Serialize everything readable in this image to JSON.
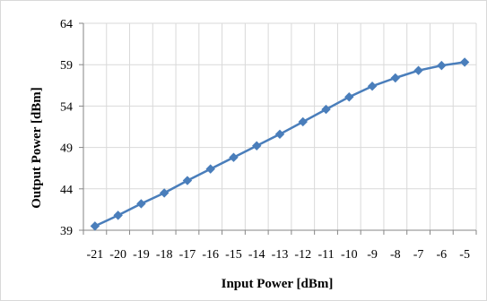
{
  "chart_data": {
    "type": "line",
    "title": "",
    "xlabel": "Input Power [dBm]",
    "ylabel": "Output Power [dBm]",
    "x": [
      -21,
      -20,
      -19,
      -18,
      -17,
      -16,
      -15,
      -14,
      -13,
      -12,
      -11,
      -10,
      -9,
      -8,
      -7,
      -6,
      -5
    ],
    "x_tick_labels": [
      "-21",
      "-20",
      "-19",
      "-18",
      "-17",
      "-16",
      "-15",
      "-14",
      "-13",
      "-12",
      "-11",
      "-10",
      "-9",
      "-8",
      "-7",
      "-6",
      "-5"
    ],
    "series": [
      {
        "values": [
          39.5,
          40.8,
          42.2,
          43.5,
          45.0,
          46.4,
          47.8,
          49.2,
          50.6,
          52.1,
          53.6,
          55.1,
          56.4,
          57.4,
          58.3,
          58.9,
          59.3
        ]
      }
    ],
    "ylim": [
      39,
      64
    ],
    "y_ticks": [
      39,
      44,
      49,
      54,
      59,
      64
    ],
    "grid": true,
    "legend": "none",
    "colors": {
      "series": "#4a7ebb",
      "grid": "#d9d9d9",
      "axis": "#868686"
    }
  }
}
